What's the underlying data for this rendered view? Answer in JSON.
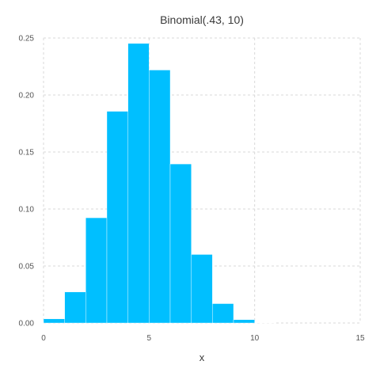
{
  "chart_data": {
    "type": "bar",
    "title": "Binomial(.43, 10)",
    "xlabel": "x",
    "ylabel": "",
    "xlim": [
      0,
      15
    ],
    "ylim": [
      0,
      0.25
    ],
    "xticks": [
      0,
      5,
      10,
      15
    ],
    "xtick_labels": [
      "0",
      "5",
      "10",
      "15"
    ],
    "yticks": [
      0,
      0.05,
      0.1,
      0.15,
      0.2,
      0.25
    ],
    "ytick_labels": [
      "0.00",
      "0.05",
      "0.10",
      "0.15",
      "0.20",
      "0.25"
    ],
    "grid": true,
    "bar_color": "#00bfff",
    "bins": [
      {
        "x0": 0,
        "x1": 1,
        "value": 0.0036
      },
      {
        "x0": 1,
        "x1": 2,
        "value": 0.0272
      },
      {
        "x0": 2,
        "x1": 3,
        "value": 0.0923
      },
      {
        "x0": 3,
        "x1": 4,
        "value": 0.1857
      },
      {
        "x0": 4,
        "x1": 5,
        "value": 0.2452
      },
      {
        "x0": 5,
        "x1": 6,
        "value": 0.2219
      },
      {
        "x0": 6,
        "x1": 7,
        "value": 0.1395
      },
      {
        "x0": 7,
        "x1": 8,
        "value": 0.0601
      },
      {
        "x0": 8,
        "x1": 9,
        "value": 0.017
      },
      {
        "x0": 9,
        "x1": 10,
        "value": 0.0029
      },
      {
        "x0": 10,
        "x1": 11,
        "value": 0.0002
      }
    ]
  }
}
